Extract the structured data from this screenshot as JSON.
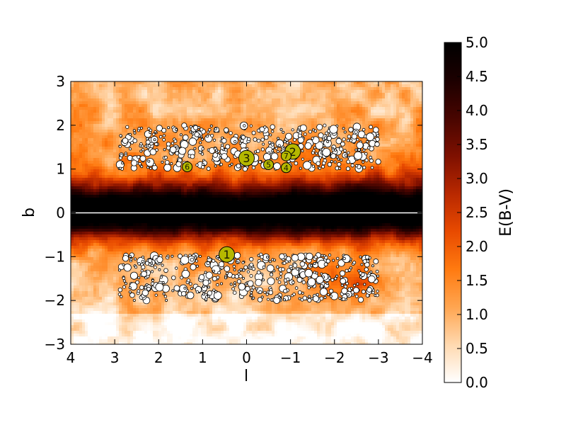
{
  "chart_data": {
    "type": "heatmap",
    "title": "",
    "xlabel": "l",
    "ylabel": "b",
    "xlim": [
      4,
      -4
    ],
    "ylim": [
      -3,
      3
    ],
    "x_ticks": [
      4,
      3,
      2,
      1,
      0,
      -1,
      -2,
      -3,
      -4
    ],
    "y_ticks": [
      -3,
      -2,
      -1,
      0,
      1,
      2,
      3
    ],
    "x_tick_labels": [
      "4",
      "3",
      "2",
      "1",
      "0",
      "−1",
      "−2",
      "−3",
      "−4"
    ],
    "y_tick_labels": [
      "−3",
      "−2",
      "−1",
      "0",
      "1",
      "2",
      "3"
    ],
    "colorbar": {
      "label": "E(B-V)",
      "range": [
        0,
        5
      ],
      "ticks": [
        0.0,
        0.5,
        1.0,
        1.5,
        2.0,
        2.5,
        3.0,
        3.5,
        4.0,
        4.5,
        5.0
      ],
      "tick_labels": [
        "0.0",
        "0.5",
        "1.0",
        "1.5",
        "2.0",
        "2.5",
        "3.0",
        "3.5",
        "4.0",
        "4.5",
        "5.0"
      ],
      "colormap": [
        "#ffffff",
        "#ffd9b0",
        "#ffa550",
        "#ff7a10",
        "#e84a00",
        "#b82800",
        "#7e1000",
        "#480500",
        "#1c0000",
        "#000000"
      ]
    },
    "reference_line": {
      "y": 0,
      "color": "#ffffff"
    },
    "field_regions": [
      {
        "name": "north",
        "l_range": [
          2.9,
          -3.0
        ],
        "b_range": [
          1.0,
          2.0
        ]
      },
      {
        "name": "south",
        "l_range": [
          2.9,
          -3.0
        ],
        "b_range": [
          -2.0,
          -0.95
        ]
      }
    ],
    "highlighted_fields": [
      {
        "label": "1",
        "l": 0.45,
        "b": -0.95,
        "size": "large"
      },
      {
        "label": "2",
        "l": -1.05,
        "b": 1.4,
        "size": "large"
      },
      {
        "label": "3",
        "l": 0.0,
        "b": 1.25,
        "size": "large"
      },
      {
        "label": "4",
        "l": -0.9,
        "b": 1.03,
        "size": "small"
      },
      {
        "label": "5",
        "l": -0.5,
        "b": 1.1,
        "size": "small"
      },
      {
        "label": "6",
        "l": 1.35,
        "b": 1.05,
        "size": "small"
      },
      {
        "label": "7",
        "l": -0.9,
        "b": 1.3,
        "size": "small"
      }
    ],
    "grid": false
  }
}
